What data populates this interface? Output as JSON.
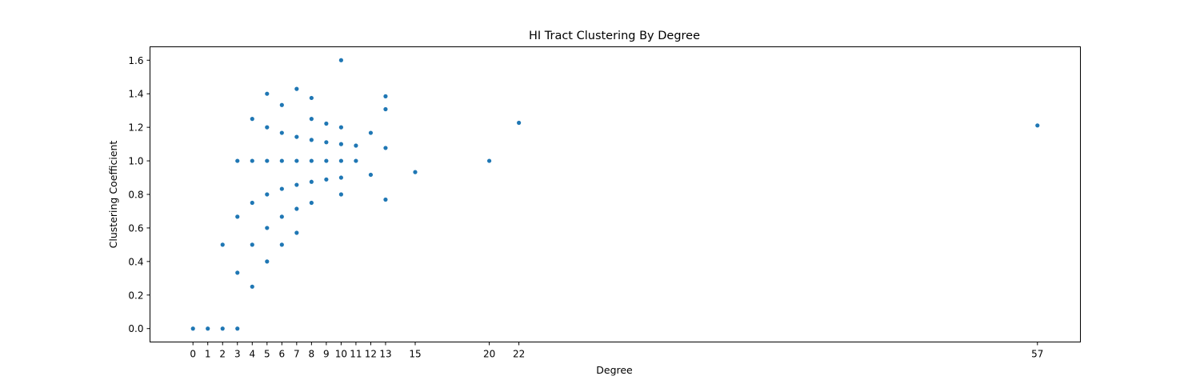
{
  "chart_data": {
    "type": "scatter",
    "title": "HI Tract Clustering By Degree",
    "xlabel": "Degree",
    "ylabel": "Clustering Coefficient",
    "x_ticks": [
      0,
      1,
      2,
      3,
      4,
      5,
      6,
      7,
      8,
      9,
      10,
      11,
      12,
      13,
      15,
      20,
      22,
      57
    ],
    "y_ticks": [
      0.0,
      0.2,
      0.4,
      0.6,
      0.8,
      1.0,
      1.2,
      1.4,
      1.6
    ],
    "y_tick_labels": [
      "0.0",
      "0.2",
      "0.4",
      "0.6",
      "0.8",
      "1.0",
      "1.2",
      "1.4",
      "1.6"
    ],
    "xlim": [
      -2.9,
      59.9
    ],
    "ylim": [
      -0.08,
      1.68
    ],
    "grid": false,
    "marker_color": "#1f77b4",
    "series": [
      {
        "points": [
          [
            0,
            0.0
          ],
          [
            1,
            0.0
          ],
          [
            2,
            0.0
          ],
          [
            2,
            0.5
          ],
          [
            3,
            0.0
          ],
          [
            3,
            0.333
          ],
          [
            3,
            0.667
          ],
          [
            3,
            1.0
          ],
          [
            4,
            0.25
          ],
          [
            4,
            0.5
          ],
          [
            4,
            0.75
          ],
          [
            4,
            1.0
          ],
          [
            4,
            1.25
          ],
          [
            5,
            0.4
          ],
          [
            5,
            0.6
          ],
          [
            5,
            0.8
          ],
          [
            5,
            1.0
          ],
          [
            5,
            1.2
          ],
          [
            5,
            1.4
          ],
          [
            6,
            0.5
          ],
          [
            6,
            0.667
          ],
          [
            6,
            0.833
          ],
          [
            6,
            1.0
          ],
          [
            6,
            1.167
          ],
          [
            6,
            1.333
          ],
          [
            7,
            0.571
          ],
          [
            7,
            0.714
          ],
          [
            7,
            0.857
          ],
          [
            7,
            1.0
          ],
          [
            7,
            1.143
          ],
          [
            7,
            1.429
          ],
          [
            8,
            0.75
          ],
          [
            8,
            0.875
          ],
          [
            8,
            1.0
          ],
          [
            8,
            1.125
          ],
          [
            8,
            1.25
          ],
          [
            8,
            1.375
          ],
          [
            9,
            0.889
          ],
          [
            9,
            1.0
          ],
          [
            9,
            1.111
          ],
          [
            9,
            1.222
          ],
          [
            10,
            0.8
          ],
          [
            10,
            0.9
          ],
          [
            10,
            1.0
          ],
          [
            10,
            1.1
          ],
          [
            10,
            1.2
          ],
          [
            10,
            1.6
          ],
          [
            11,
            1.0
          ],
          [
            11,
            1.091
          ],
          [
            12,
            0.917
          ],
          [
            12,
            1.167
          ],
          [
            13,
            0.769
          ],
          [
            13,
            1.077
          ],
          [
            13,
            1.308
          ],
          [
            13,
            1.385
          ],
          [
            15,
            0.933
          ],
          [
            20,
            1.0
          ],
          [
            22,
            1.227
          ],
          [
            57,
            1.211
          ]
        ]
      }
    ]
  }
}
